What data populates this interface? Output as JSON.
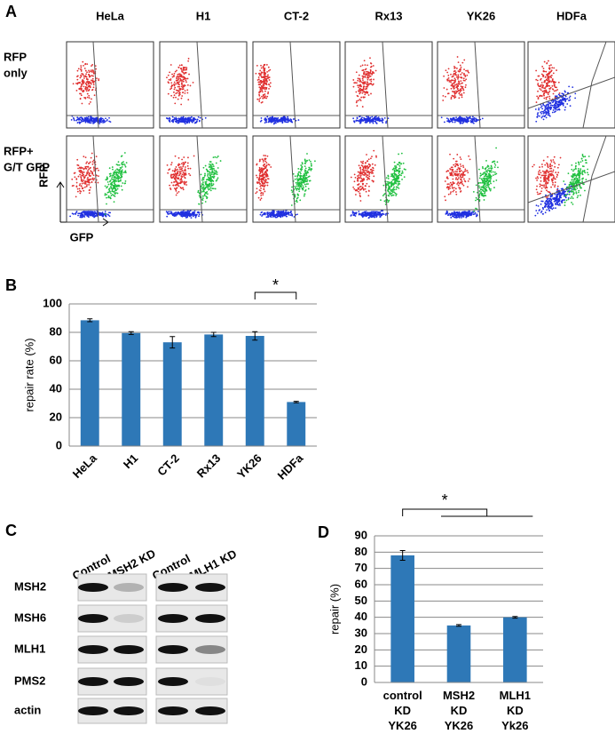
{
  "panel_a": {
    "label": "A",
    "columns": [
      "HeLa",
      "H1",
      "CT-2",
      "Rx13",
      "YK26",
      "HDFa"
    ],
    "rows": [
      [
        "RFP",
        "only"
      ],
      [
        "RFP+",
        "G/T GFP"
      ]
    ],
    "y_axis": "RFP",
    "x_axis": "GFP"
  },
  "chart_data": [
    {
      "type": "bar",
      "label": "B",
      "ylabel": "repair rate (%)",
      "categories": [
        "HeLa",
        "H1",
        "CT-2",
        "Rx13",
        "YK26",
        "HDFa"
      ],
      "values": [
        88.5,
        79.5,
        73,
        78.5,
        77.5,
        31
      ],
      "errors": [
        1,
        1,
        4,
        1.5,
        3,
        0.5
      ],
      "color": "#2e78b7",
      "ylim": [
        0,
        100
      ],
      "yticks": [
        0,
        20,
        40,
        60,
        80,
        100
      ],
      "grid": true,
      "significance": "*"
    },
    {
      "type": "bar",
      "label": "D",
      "ylabel": "repair (%)",
      "categories": [
        "control KD YK26",
        "MSH2 KD YK26",
        "MLH1 KD Yk26"
      ],
      "values": [
        78,
        35,
        40
      ],
      "errors": [
        3,
        0.5,
        0.5
      ],
      "color": "#2e78b7",
      "ylim": [
        0,
        90
      ],
      "yticks": [
        0,
        10,
        20,
        30,
        40,
        50,
        60,
        70,
        80,
        90
      ],
      "grid": true,
      "significance": "*"
    }
  ],
  "panel_c": {
    "label": "C",
    "lanes": [
      "Control",
      "MSH2 KD",
      "Control",
      "MLH1 KD"
    ],
    "proteins": [
      "MSH2",
      "MSH6",
      "MLH1",
      "PMS2",
      "actin"
    ]
  }
}
